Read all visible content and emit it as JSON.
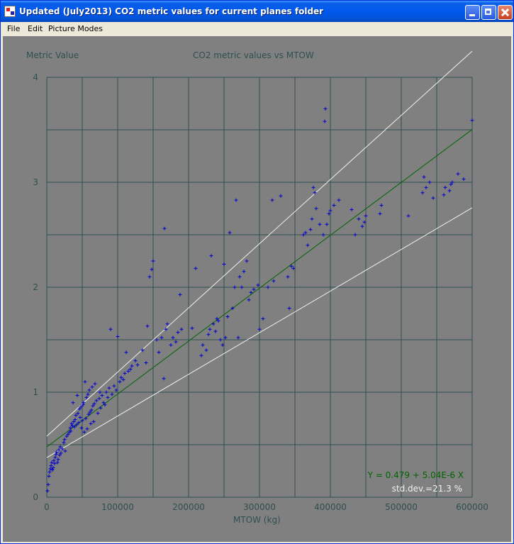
{
  "window": {
    "title": "Updated (July2013)  CO2 metric values for current planes folder",
    "buttons": {
      "minimize": "minimize",
      "maximize": "maximize",
      "close": "close"
    }
  },
  "menu": {
    "items": [
      "File",
      "Edit",
      "Picture Modes"
    ]
  },
  "chart_data": {
    "type": "scatter",
    "title": "CO2 metric values vs MTOW",
    "ylabel": "Metric Value",
    "xlabel": "MTOW (kg)",
    "xlim": [
      0,
      600000
    ],
    "ylim": [
      0,
      4
    ],
    "x_ticks": [
      0,
      100000,
      200000,
      300000,
      400000,
      500000,
      600000
    ],
    "x_tick_labels": [
      "0",
      "100000",
      "200000",
      "300000",
      "400000",
      "500000",
      "600000"
    ],
    "y_ticks": [
      0,
      1,
      2,
      3,
      4
    ],
    "y_tick_labels": [
      "0",
      "1",
      "2",
      "3",
      "4"
    ],
    "grid": true,
    "colors": {
      "background": "#808080",
      "grid": "#2F4F4F",
      "points": "#0000CD",
      "fit": "#006400",
      "bounds": "#F0F0F0",
      "fit_label": "#006400",
      "stddev_label": "#F0F0F0"
    },
    "regression": {
      "intercept": 0.479,
      "slope": 5.04e-06,
      "label": "Y = 0.479 + 5.04E-6 X"
    },
    "std_dev": {
      "percent": 21.3,
      "label": "std.dev.=21.3 %"
    },
    "series": [
      {
        "marker": "+",
        "points": [
          [
            1000,
            0.06
          ],
          [
            2000,
            0.12
          ],
          [
            3000,
            0.2
          ],
          [
            4000,
            0.24
          ],
          [
            5000,
            0.27
          ],
          [
            6000,
            0.3
          ],
          [
            7000,
            0.33
          ],
          [
            8000,
            0.26
          ],
          [
            9000,
            0.28
          ],
          [
            10000,
            0.35
          ],
          [
            11000,
            0.32
          ],
          [
            12000,
            0.38
          ],
          [
            13000,
            0.41
          ],
          [
            14000,
            0.43
          ],
          [
            15000,
            0.33
          ],
          [
            16000,
            0.36
          ],
          [
            17000,
            0.45
          ],
          [
            18000,
            0.4
          ],
          [
            19000,
            0.48
          ],
          [
            20000,
            0.42
          ],
          [
            22000,
            0.46
          ],
          [
            24000,
            0.52
          ],
          [
            25000,
            0.55
          ],
          [
            26000,
            0.44
          ],
          [
            28000,
            0.58
          ],
          [
            30000,
            0.6
          ],
          [
            32000,
            0.62
          ],
          [
            33000,
            0.66
          ],
          [
            34000,
            0.63
          ],
          [
            35000,
            0.7
          ],
          [
            36000,
            0.68
          ],
          [
            37000,
            0.9
          ],
          [
            38000,
            0.72
          ],
          [
            39000,
            0.67
          ],
          [
            40000,
            0.74
          ],
          [
            41000,
            0.78
          ],
          [
            42000,
            0.69
          ],
          [
            43000,
            0.97
          ],
          [
            44000,
            0.8
          ],
          [
            45000,
            0.71
          ],
          [
            46000,
            0.84
          ],
          [
            47000,
            0.76
          ],
          [
            48000,
            0.86
          ],
          [
            49000,
            0.66
          ],
          [
            50000,
            0.73
          ],
          [
            51000,
            0.88
          ],
          [
            52000,
            0.9
          ],
          [
            53000,
            0.62
          ],
          [
            54000,
            1.1
          ],
          [
            55000,
            0.75
          ],
          [
            56000,
            0.95
          ],
          [
            57000,
            0.65
          ],
          [
            58000,
            0.98
          ],
          [
            59000,
            0.79
          ],
          [
            60000,
            1.02
          ],
          [
            61000,
            0.81
          ],
          [
            62000,
            0.7
          ],
          [
            63000,
            0.83
          ],
          [
            64000,
            1.05
          ],
          [
            65000,
            0.87
          ],
          [
            66000,
            0.72
          ],
          [
            67000,
            0.89
          ],
          [
            68000,
            1.08
          ],
          [
            70000,
            0.92
          ],
          [
            72000,
            0.8
          ],
          [
            74000,
            0.94
          ],
          [
            75000,
            1.0
          ],
          [
            76000,
            0.85
          ],
          [
            78000,
            0.97
          ],
          [
            80000,
            0.9
          ],
          [
            82000,
            0.88
          ],
          [
            84000,
            1.0
          ],
          [
            86000,
            0.95
          ],
          [
            88000,
            1.04
          ],
          [
            90000,
            1.6
          ],
          [
            92000,
            0.98
          ],
          [
            95000,
            1.06
          ],
          [
            98000,
            1.02
          ],
          [
            100000,
            1.53
          ],
          [
            103000,
            1.1
          ],
          [
            105000,
            1.14
          ],
          [
            108000,
            1.12
          ],
          [
            110000,
            1.18
          ],
          [
            112000,
            1.38
          ],
          [
            115000,
            1.2
          ],
          [
            118000,
            1.22
          ],
          [
            120000,
            1.25
          ],
          [
            125000,
            1.3
          ],
          [
            128000,
            1.26
          ],
          [
            135000,
            1.4
          ],
          [
            140000,
            1.28
          ],
          [
            142000,
            1.63
          ],
          [
            145000,
            2.1
          ],
          [
            148000,
            2.17
          ],
          [
            150000,
            2.25
          ],
          [
            155000,
            1.5
          ],
          [
            158000,
            1.38
          ],
          [
            162000,
            1.52
          ],
          [
            165000,
            1.13
          ],
          [
            166000,
            2.56
          ],
          [
            168000,
            1.6
          ],
          [
            170000,
            1.65
          ],
          [
            175000,
            1.45
          ],
          [
            178000,
            1.52
          ],
          [
            182000,
            1.48
          ],
          [
            185000,
            1.57
          ],
          [
            188000,
            1.93
          ],
          [
            190000,
            1.6
          ],
          [
            205000,
            1.61
          ],
          [
            210000,
            2.18
          ],
          [
            218000,
            1.35
          ],
          [
            220000,
            1.45
          ],
          [
            225000,
            1.4
          ],
          [
            228000,
            1.55
          ],
          [
            230000,
            1.6
          ],
          [
            232000,
            2.3
          ],
          [
            235000,
            1.65
          ],
          [
            238000,
            1.58
          ],
          [
            240000,
            1.7
          ],
          [
            242000,
            1.68
          ],
          [
            245000,
            1.5
          ],
          [
            248000,
            1.45
          ],
          [
            250000,
            2.22
          ],
          [
            252000,
            1.52
          ],
          [
            255000,
            1.72
          ],
          [
            258000,
            2.52
          ],
          [
            262000,
            1.8
          ],
          [
            265000,
            2.0
          ],
          [
            267000,
            2.83
          ],
          [
            270000,
            1.52
          ],
          [
            272000,
            2.1
          ],
          [
            275000,
            2.0
          ],
          [
            278000,
            2.15
          ],
          [
            282000,
            2.25
          ],
          [
            285000,
            1.88
          ],
          [
            288000,
            1.95
          ],
          [
            292000,
            1.98
          ],
          [
            298000,
            2.02
          ],
          [
            300000,
            1.6
          ],
          [
            305000,
            1.7
          ],
          [
            312000,
            2.0
          ],
          [
            318000,
            2.83
          ],
          [
            320000,
            2.06
          ],
          [
            330000,
            2.87
          ],
          [
            340000,
            2.1
          ],
          [
            342000,
            1.8
          ],
          [
            345000,
            2.2
          ],
          [
            348000,
            2.18
          ],
          [
            362000,
            2.5
          ],
          [
            365000,
            2.52
          ],
          [
            368000,
            2.4
          ],
          [
            372000,
            2.55
          ],
          [
            374000,
            2.65
          ],
          [
            376000,
            2.95
          ],
          [
            378000,
            2.9
          ],
          [
            380000,
            2.75
          ],
          [
            385000,
            2.6
          ],
          [
            390000,
            2.5
          ],
          [
            392000,
            3.58
          ],
          [
            393000,
            3.7
          ],
          [
            395000,
            2.6
          ],
          [
            398000,
            2.7
          ],
          [
            400000,
            2.73
          ],
          [
            405000,
            2.78
          ],
          [
            412000,
            2.83
          ],
          [
            430000,
            2.74
          ],
          [
            435000,
            2.5
          ],
          [
            440000,
            2.65
          ],
          [
            445000,
            2.58
          ],
          [
            448000,
            2.62
          ],
          [
            450000,
            2.68
          ],
          [
            470000,
            2.7
          ],
          [
            472000,
            2.78
          ],
          [
            510000,
            2.68
          ],
          [
            530000,
            2.9
          ],
          [
            532000,
            3.05
          ],
          [
            535000,
            2.95
          ],
          [
            540000,
            3.0
          ],
          [
            545000,
            2.85
          ],
          [
            560000,
            2.88
          ],
          [
            562000,
            2.95
          ],
          [
            568000,
            2.92
          ],
          [
            570000,
            2.98
          ],
          [
            572000,
            3.0
          ],
          [
            580000,
            3.08
          ],
          [
            588000,
            3.03
          ],
          [
            600000,
            3.59
          ]
        ]
      }
    ]
  }
}
